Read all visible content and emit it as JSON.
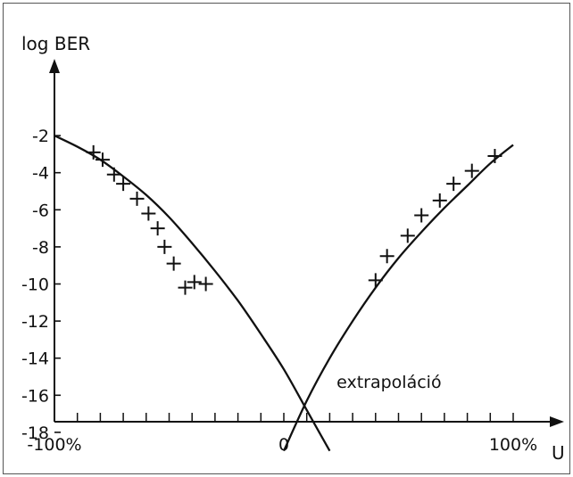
{
  "chart_data": {
    "type": "line",
    "ylabel": "log BER",
    "xlabel": "U",
    "xlim": [
      -100,
      100
    ],
    "ylim": [
      -19,
      -2
    ],
    "y_ticks": [
      -2,
      -4,
      -6,
      -8,
      -10,
      -12,
      -14,
      -16,
      -18
    ],
    "y_tick_labels": [
      "-2",
      "-4",
      "-6",
      "-8",
      "-10",
      "-12",
      "-14",
      "-16",
      "-18"
    ],
    "x_ticks": [
      -100,
      0,
      100
    ],
    "x_tick_labels": [
      "-100%",
      "0",
      "100%"
    ],
    "grid": false,
    "annotations": [
      {
        "text": "extrapoláció",
        "x": 23,
        "y": -15.6
      }
    ],
    "series": [
      {
        "marker": "none",
        "x": [
          -100,
          -90,
          -80,
          -70,
          -60,
          -50,
          -40,
          -30,
          -20,
          -10,
          0,
          10,
          20
        ],
        "y": [
          -2.0,
          -2.6,
          -3.3,
          -4.2,
          -5.2,
          -6.4,
          -7.8,
          -9.3,
          -10.9,
          -12.7,
          -14.6,
          -16.8,
          -19.0
        ]
      },
      {
        "marker": "plus",
        "x": [
          -83,
          -79,
          -74,
          -70,
          -64,
          -59,
          -55,
          -52,
          -48,
          -43,
          -39,
          -34
        ],
        "y": [
          -2.9,
          -3.3,
          -4.1,
          -4.6,
          -5.4,
          -6.2,
          -7.0,
          -8.0,
          -8.9,
          -10.2,
          -9.9,
          -10.0
        ]
      },
      {
        "marker": "none",
        "x": [
          0,
          10,
          20,
          30,
          40,
          50,
          60,
          70,
          80,
          90,
          100
        ],
        "y": [
          -19.0,
          -16.3,
          -14.0,
          -12.0,
          -10.2,
          -8.6,
          -7.2,
          -5.9,
          -4.7,
          -3.5,
          -2.5
        ]
      },
      {
        "marker": "plus",
        "x": [
          40,
          45,
          54,
          60,
          68,
          74,
          82,
          92
        ],
        "y": [
          -9.8,
          -8.5,
          -7.4,
          -6.3,
          -5.5,
          -4.6,
          -3.9,
          -3.1
        ]
      }
    ]
  }
}
